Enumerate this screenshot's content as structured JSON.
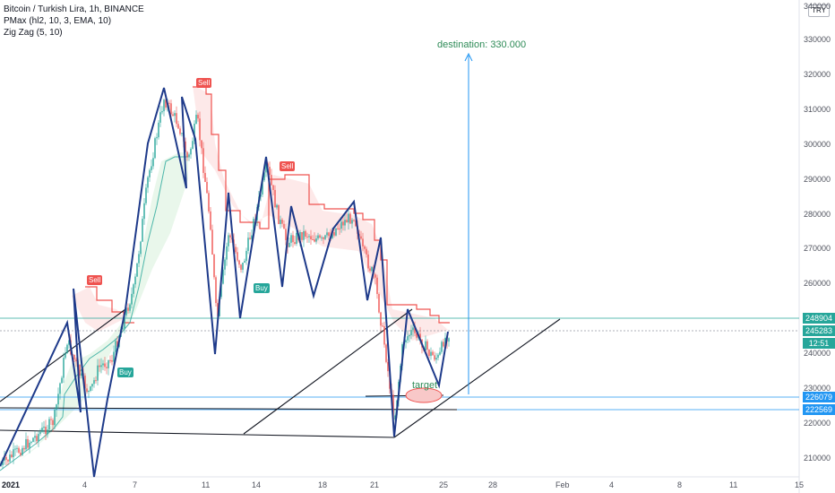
{
  "legend": {
    "symbol": "Bitcoin / Turkish Lira, 1h, BINANCE",
    "indicator1": "PMax (hl2, 10, 3, EMA, 10)",
    "indicator2": "Zig Zag (5, 10)"
  },
  "currency": "TRY",
  "y_axis_labels": [
    "340000",
    "330000",
    "320000",
    "310000",
    "300000",
    "290000",
    "280000",
    "270000",
    "260000",
    "240000",
    "230000",
    "220000",
    "210000"
  ],
  "x_axis_labels": [
    "2021",
    "4",
    "7",
    "11",
    "14",
    "18",
    "21",
    "25",
    "28",
    "Feb",
    "4",
    "8",
    "11",
    "15"
  ],
  "price_tags": [
    {
      "label": "248904",
      "color": "#26a69a"
    },
    {
      "label": "245283",
      "color": "#26a69a"
    },
    {
      "label": "12:51",
      "color": "#26a69a"
    },
    {
      "label": "226079",
      "color": "#2196f3"
    },
    {
      "label": "222569",
      "color": "#2196f3"
    }
  ],
  "signals": [
    {
      "label": "Sell",
      "type": "sell"
    },
    {
      "label": "Sell",
      "type": "sell"
    },
    {
      "label": "Sell",
      "type": "sell"
    },
    {
      "label": "Buy",
      "type": "buy"
    },
    {
      "label": "Buy",
      "type": "buy"
    }
  ],
  "annotations": {
    "destination": "destination: 330.000",
    "target": "target"
  },
  "colors": {
    "up": "#26a69a",
    "down": "#ef5350",
    "pmax": "#ef5350",
    "zigzag": "#1e3a8a",
    "accent": "#2196f3"
  }
}
